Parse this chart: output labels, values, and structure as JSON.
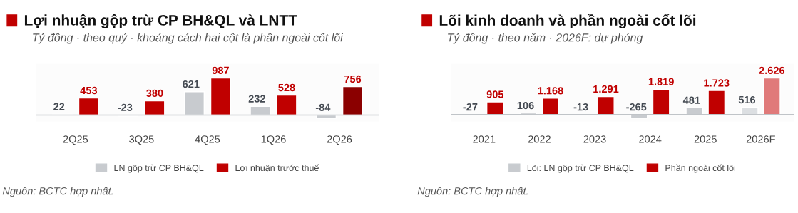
{
  "chart_data": [
    {
      "type": "bar",
      "title": "Lợi nhuận gộp trừ CP BH&QL và LNTT",
      "subtitle": "Tỷ đồng · theo quý · khoảng cách hai cột là phần ngoài cốt lõi",
      "categories": [
        "2Q25",
        "3Q25",
        "4Q25",
        "1Q26",
        "2Q26"
      ],
      "series": [
        {
          "name": "LN gộp trừ CP BH&QL",
          "color": "#c8cbcf",
          "values": [
            22,
            -23,
            621,
            232,
            -84
          ],
          "value_labels": [
            "22",
            "-23",
            "621",
            "232",
            "-84"
          ]
        },
        {
          "name": "Lợi nhuận trước thuế",
          "color": "#c00000",
          "colors": [
            "#c00000",
            "#c00000",
            "#c00000",
            "#c00000",
            "#8b0000"
          ],
          "values": [
            453,
            380,
            987,
            528,
            756
          ],
          "value_labels": [
            "453",
            "380",
            "987",
            "528",
            "756"
          ]
        }
      ],
      "legend": "bottom",
      "grid": false,
      "annotations": [
        "Nguồn: BCTC hợp nhất."
      ]
    },
    {
      "type": "bar",
      "title": "Lõi kinh doanh và phần ngoài cốt lõi",
      "subtitle": "Tỷ đồng · theo năm · 2026F: dự phóng",
      "categories": [
        "2021",
        "2022",
        "2023",
        "2024",
        "2025",
        "2026F"
      ],
      "series": [
        {
          "name": "Lõi: LN gộp trừ CP BH&QL",
          "color": "#c8cbcf",
          "colors": [
            "#c8cbcf",
            "#c8cbcf",
            "#c8cbcf",
            "#c8cbcf",
            "#c8cbcf",
            "#dcdfe2"
          ],
          "values": [
            -27,
            106,
            -13,
            -265,
            481,
            516
          ],
          "value_labels": [
            "-27",
            "106",
            "-13",
            "-265",
            "481",
            "516"
          ]
        },
        {
          "name": "Phần ngoài cốt lõi",
          "color": "#c00000",
          "colors": [
            "#c00000",
            "#c00000",
            "#c00000",
            "#c00000",
            "#c00000",
            "#e07a7a"
          ],
          "values": [
            905,
            1168,
            1291,
            1819,
            1723,
            2626
          ],
          "value_labels": [
            "905",
            "1.168",
            "1.291",
            "1.819",
            "1.723",
            "2.626"
          ]
        }
      ],
      "legend": "bottom",
      "grid": false,
      "annotations": [
        "Nguồn: BCTC hợp nhất."
      ]
    }
  ]
}
